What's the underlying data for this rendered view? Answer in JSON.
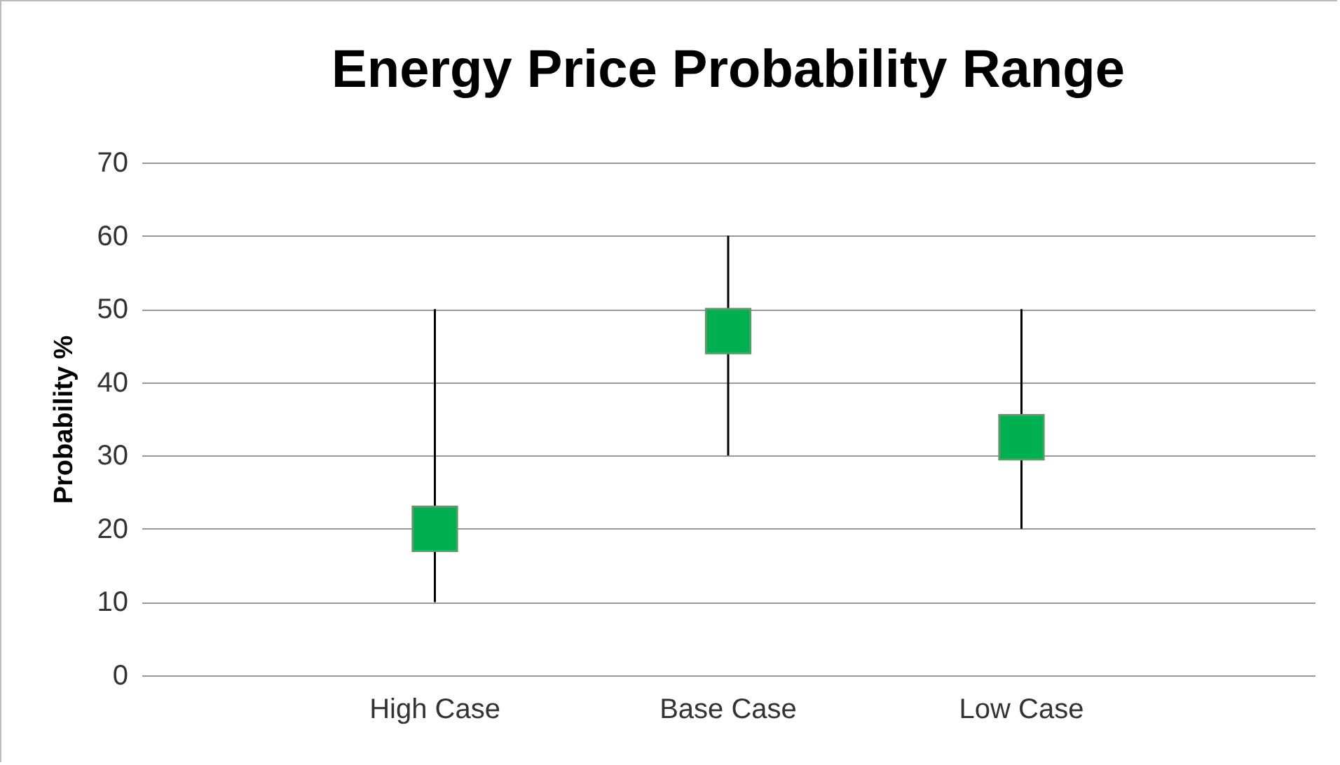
{
  "chart_data": {
    "type": "scatter",
    "title": "Energy Price Probability Range",
    "ylabel": "Probability %",
    "categories": [
      "High Case",
      "Base Case",
      "Low Case"
    ],
    "series": [
      {
        "color": "#00b050",
        "values": [
          20,
          47,
          32.5
        ],
        "errors": [
          [
            10,
            50
          ],
          [
            30,
            60
          ],
          [
            20,
            50
          ]
        ]
      }
    ],
    "ylim": [
      0,
      70
    ],
    "yticks": [
      0,
      10,
      20,
      30,
      40,
      50,
      60,
      70
    ],
    "grid": "y",
    "marker": "square",
    "legend": false
  }
}
